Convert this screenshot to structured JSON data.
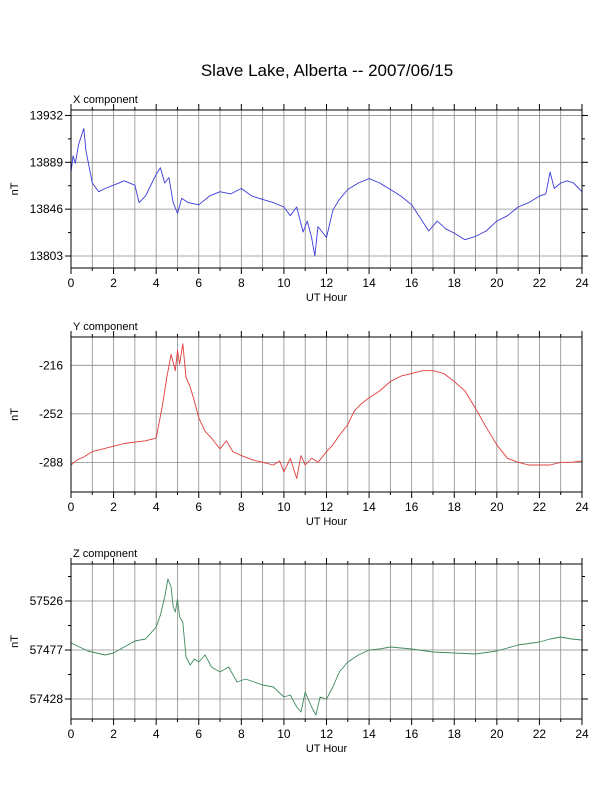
{
  "figure": {
    "title": "Slave Lake, Alberta -- 2007/06/15"
  },
  "chart_data": [
    {
      "type": "line",
      "title": "X component",
      "xlabel": "UT Hour",
      "ylabel": "nT",
      "xlim": [
        0,
        24
      ],
      "ylim": [
        13792,
        13937
      ],
      "xticks": [
        0,
        2,
        4,
        6,
        8,
        10,
        12,
        14,
        16,
        18,
        20,
        22,
        24
      ],
      "yticks": [
        13803,
        13846,
        13889,
        13932
      ],
      "grid": true,
      "color": "#3b3bdb",
      "series": [
        {
          "x": [
            0,
            0.1,
            0.2,
            0.35,
            0.5,
            0.6,
            0.7,
            0.85,
            1.0,
            1.3,
            1.6,
            2.0,
            2.5,
            3.0,
            3.2,
            3.5,
            3.8,
            4.0,
            4.2,
            4.4,
            4.6,
            4.8,
            5.0,
            5.2,
            5.5,
            6.0,
            6.5,
            7.0,
            7.5,
            8.0,
            8.5,
            9.0,
            9.5,
            10.0,
            10.3,
            10.6,
            10.9,
            11.1,
            11.3,
            11.45,
            11.6,
            11.8,
            12.0,
            12.3,
            12.6,
            13.0,
            13.5,
            14.0,
            14.5,
            15.0,
            15.5,
            16.0,
            16.4,
            16.8,
            17.2,
            17.6,
            18.0,
            18.5,
            19.0,
            19.5,
            20.0,
            20.5,
            21.0,
            21.5,
            22.0,
            22.3,
            22.5,
            22.7,
            23.0,
            23.3,
            23.6,
            24.0
          ],
          "y": [
            13880,
            13895,
            13888,
            13905,
            13914,
            13920,
            13900,
            13885,
            13870,
            13862,
            13865,
            13868,
            13872,
            13868,
            13852,
            13858,
            13870,
            13878,
            13884,
            13870,
            13875,
            13852,
            13842,
            13856,
            13852,
            13850,
            13858,
            13862,
            13860,
            13865,
            13858,
            13855,
            13852,
            13848,
            13840,
            13848,
            13825,
            13835,
            13820,
            13803,
            13830,
            13825,
            13820,
            13845,
            13855,
            13864,
            13870,
            13874,
            13870,
            13864,
            13858,
            13850,
            13838,
            13826,
            13835,
            13828,
            13824,
            13818,
            13821,
            13826,
            13835,
            13840,
            13848,
            13852,
            13858,
            13860,
            13880,
            13865,
            13870,
            13872,
            13870,
            13862
          ]
        }
      ]
    },
    {
      "type": "line",
      "title": "Y component",
      "xlabel": "UT Hour",
      "ylabel": "nT",
      "xlim": [
        0,
        24
      ],
      "ylim": [
        -310,
        -195
      ],
      "xticks": [
        0,
        2,
        4,
        6,
        8,
        10,
        12,
        14,
        16,
        18,
        20,
        22,
        24
      ],
      "yticks": [
        -216,
        -252,
        -288
      ],
      "grid": true,
      "color": "#e03c3c",
      "series": [
        {
          "x": [
            0,
            0.3,
            0.6,
            1.0,
            1.5,
            2.0,
            2.5,
            3.0,
            3.5,
            4.0,
            4.3,
            4.5,
            4.7,
            4.9,
            5.0,
            5.1,
            5.25,
            5.4,
            5.6,
            5.8,
            6.0,
            6.3,
            6.6,
            7.0,
            7.3,
            7.6,
            8.0,
            8.5,
            9.0,
            9.5,
            9.8,
            10.0,
            10.3,
            10.6,
            10.8,
            11.0,
            11.3,
            11.6,
            12.0,
            12.3,
            12.6,
            13.0,
            13.3,
            13.6,
            14.0,
            14.5,
            15.0,
            15.5,
            16.0,
            16.5,
            17.0,
            17.5,
            18.0,
            18.5,
            19.0,
            19.5,
            20.0,
            20.5,
            21.0,
            21.5,
            22.0,
            22.5,
            23.0,
            23.5,
            24.0
          ],
          "y": [
            -290,
            -286,
            -284,
            -280,
            -278,
            -276,
            -274,
            -273,
            -272,
            -270,
            -245,
            -225,
            -208,
            -220,
            -205,
            -215,
            -200,
            -225,
            -232,
            -243,
            -255,
            -265,
            -270,
            -278,
            -272,
            -280,
            -283,
            -286,
            -288,
            -290,
            -287,
            -295,
            -285,
            -300,
            -283,
            -290,
            -285,
            -288,
            -280,
            -275,
            -268,
            -260,
            -250,
            -245,
            -240,
            -235,
            -228,
            -224,
            -222,
            -220,
            -220,
            -222,
            -228,
            -235,
            -248,
            -262,
            -275,
            -285,
            -288,
            -290,
            -290,
            -290,
            -288,
            -288,
            -287
          ]
        }
      ]
    },
    {
      "type": "line",
      "title": "Z component",
      "xlabel": "UT Hour",
      "ylabel": "nT",
      "xlim": [
        0,
        24
      ],
      "ylim": [
        57408,
        57563
      ],
      "xticks": [
        0,
        2,
        4,
        6,
        8,
        10,
        12,
        14,
        16,
        18,
        20,
        22,
        24
      ],
      "yticks": [
        57428,
        57477,
        57526
      ],
      "grid": true,
      "color": "#3f8a5e",
      "series": [
        {
          "x": [
            0,
            0.4,
            0.8,
            1.2,
            1.6,
            2.0,
            2.5,
            3.0,
            3.5,
            4.0,
            4.2,
            4.4,
            4.55,
            4.7,
            4.8,
            4.9,
            5.0,
            5.1,
            5.25,
            5.4,
            5.5,
            5.6,
            5.8,
            6.0,
            6.3,
            6.6,
            7.0,
            7.4,
            7.8,
            8.2,
            8.6,
            9.0,
            9.5,
            10.0,
            10.3,
            10.6,
            10.8,
            11.0,
            11.3,
            11.5,
            11.7,
            12.0,
            12.3,
            12.6,
            13.0,
            13.5,
            14.0,
            14.5,
            15.0,
            16.0,
            17.0,
            18.0,
            19.0,
            20.0,
            21.0,
            22.0,
            22.5,
            23.0,
            23.5,
            24.0
          ],
          "y": [
            57484,
            57480,
            57476,
            57474,
            57472,
            57474,
            57480,
            57486,
            57488,
            57500,
            57512,
            57530,
            57548,
            57540,
            57520,
            57515,
            57528,
            57510,
            57505,
            57470,
            57466,
            57462,
            57468,
            57465,
            57472,
            57460,
            57455,
            57460,
            57445,
            57448,
            57445,
            57442,
            57440,
            57430,
            57432,
            57420,
            57415,
            57435,
            57420,
            57412,
            57430,
            57428,
            57440,
            57455,
            57465,
            57472,
            57477,
            57478,
            57480,
            57478,
            57475,
            57474,
            57473,
            57476,
            57482,
            57485,
            57488,
            57490,
            57488,
            57487
          ]
        }
      ]
    }
  ]
}
